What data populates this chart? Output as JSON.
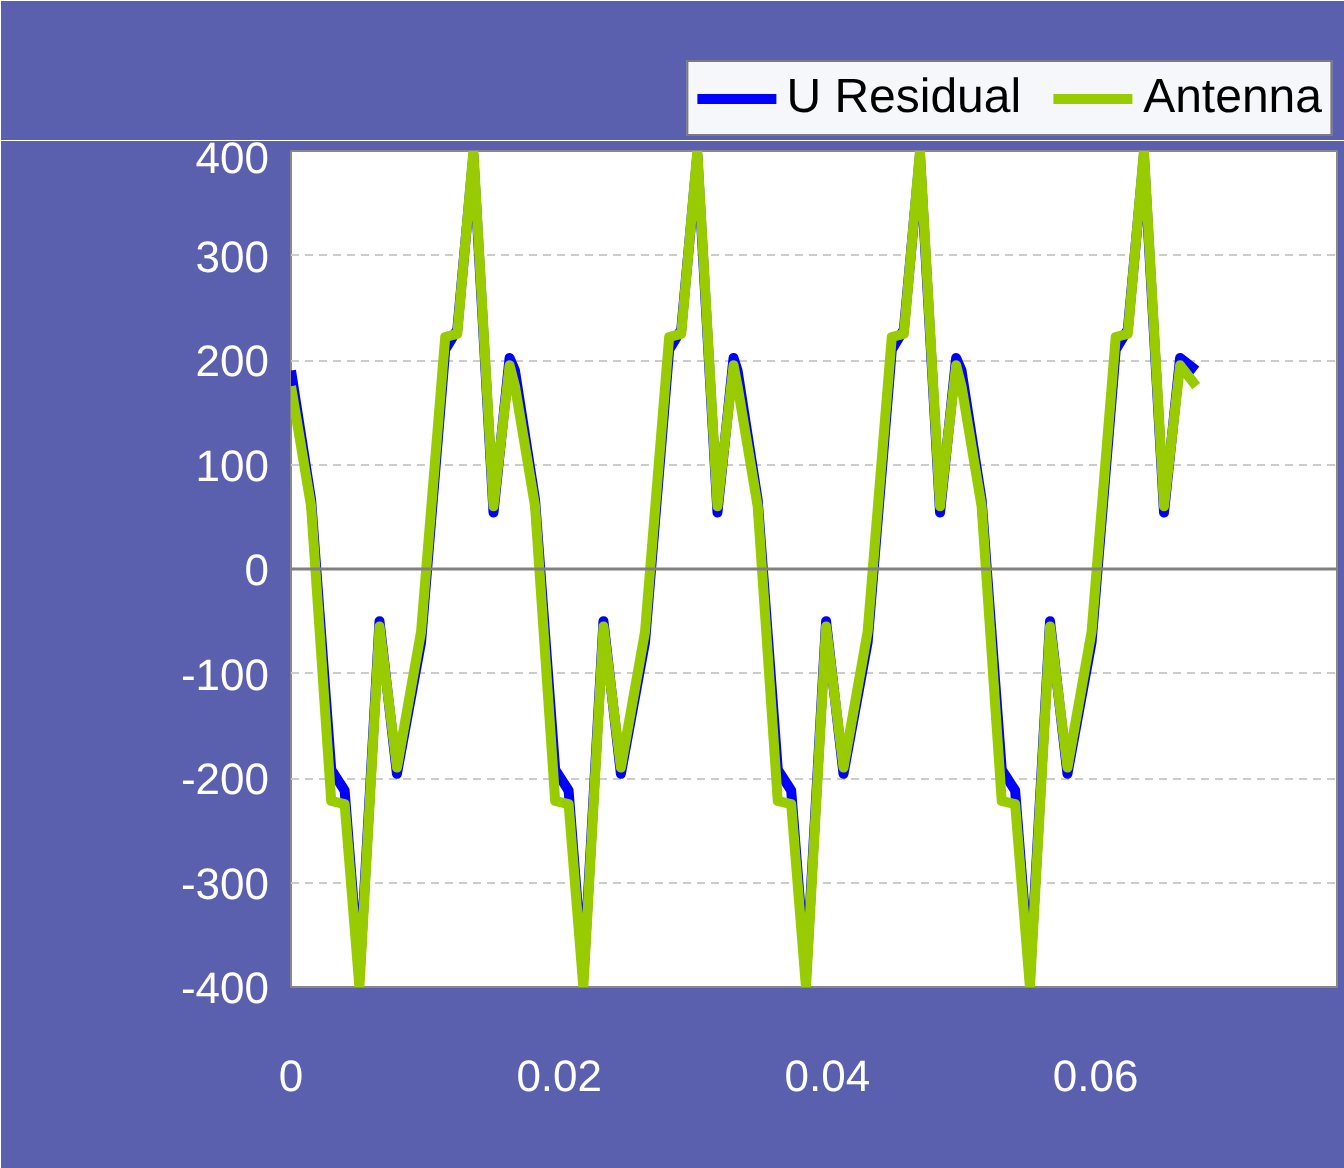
{
  "chart_data": {
    "type": "line",
    "x": [
      0,
      0.0015,
      0.003,
      0.004,
      0.0051,
      0.0066,
      0.0079,
      0.0097,
      0.0115,
      0.0124,
      0.0136,
      0.0151,
      0.0163,
      0.0167,
      0.0182,
      0.0197,
      0.0207,
      0.0218,
      0.0233,
      0.0246,
      0.0264,
      0.0282,
      0.0291,
      0.0303,
      0.0318,
      0.033,
      0.0333,
      0.0348,
      0.0363,
      0.0373,
      0.0384,
      0.0399,
      0.0412,
      0.043,
      0.0448,
      0.0457,
      0.0469,
      0.0484,
      0.0496,
      0.05,
      0.0515,
      0.053,
      0.054,
      0.0551,
      0.0566,
      0.0579,
      0.0597,
      0.0615,
      0.0624,
      0.0636,
      0.0651,
      0.0663,
      0.0675
    ],
    "series": [
      {
        "name": "U Residual",
        "color": "#0000ff",
        "values": [
          190,
          66,
          -192,
          -212,
          -392,
          -50,
          -196,
          -70,
          210,
          229,
          396,
          54,
          202,
          190,
          66,
          -192,
          -212,
          -392,
          -50,
          -196,
          -70,
          210,
          229,
          396,
          54,
          202,
          190,
          66,
          -192,
          -212,
          -392,
          -50,
          -196,
          -70,
          210,
          229,
          396,
          54,
          202,
          190,
          66,
          -192,
          -212,
          -392,
          -50,
          -196,
          -70,
          210,
          229,
          396,
          54,
          202,
          190
        ]
      },
      {
        "name": "Antenna",
        "color": "#99cc00",
        "values": [
          175,
          60,
          -222,
          -225,
          -400,
          -55,
          -190,
          -60,
          222,
          225,
          400,
          60,
          195,
          175,
          60,
          -222,
          -225,
          -400,
          -55,
          -190,
          -60,
          222,
          225,
          400,
          60,
          195,
          175,
          60,
          -222,
          -225,
          -400,
          -55,
          -190,
          -60,
          222,
          225,
          400,
          60,
          195,
          175,
          60,
          -222,
          -225,
          -400,
          -55,
          -190,
          -60,
          222,
          225,
          400,
          60,
          195,
          175
        ]
      }
    ],
    "xlim": [
      0,
      0.078
    ],
    "xticks": [
      0,
      0.02,
      0.04,
      0.06
    ],
    "ylim": [
      -400,
      400
    ],
    "yticks": [
      -400,
      -300,
      -200,
      -100,
      0,
      100,
      200,
      300,
      400
    ],
    "ref_lines": [
      {
        "axis": "y",
        "value": 0,
        "color": "#808080"
      }
    ],
    "grid": "y",
    "legend": "top",
    "marker": "none",
    "line_style": "solid"
  }
}
